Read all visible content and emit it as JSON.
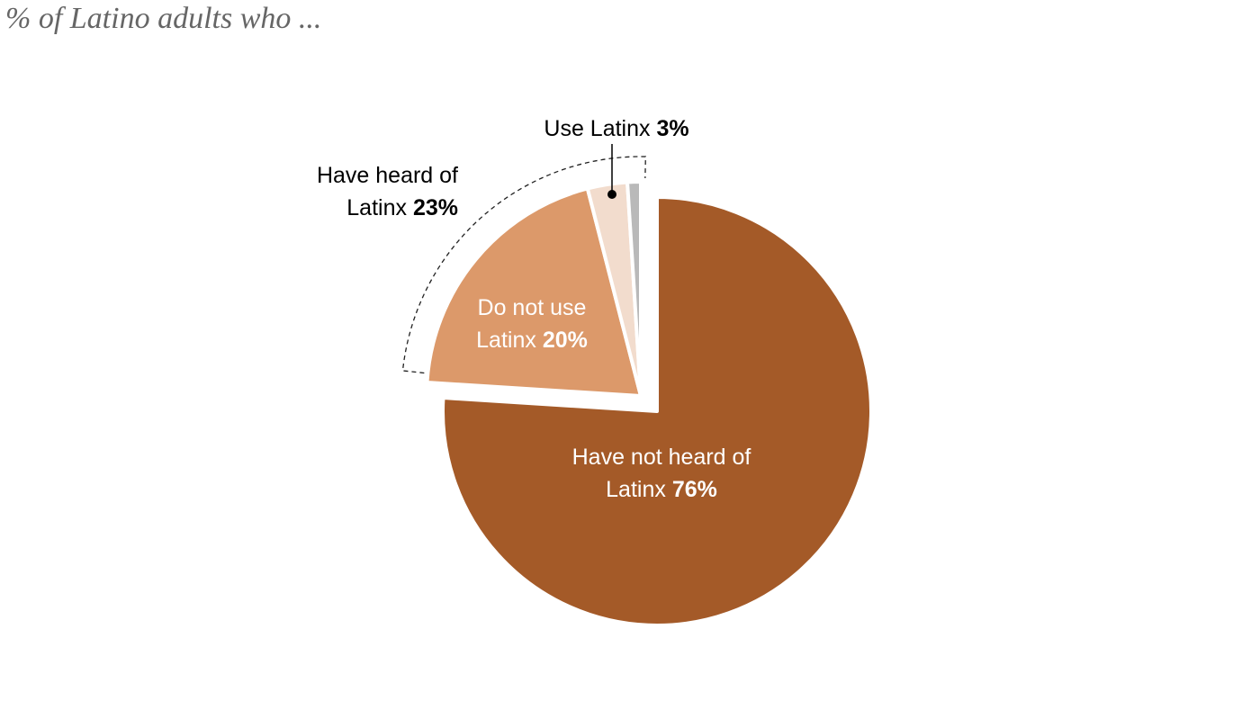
{
  "chart_data": {
    "type": "pie",
    "title": "% of Latino adults who ...",
    "categories": [
      "Have not heard of Latinx",
      "Do not use Latinx",
      "Use Latinx",
      null
    ],
    "values": [
      76,
      20,
      3,
      1
    ],
    "value_labels": [
      "76%",
      "20%",
      "3%",
      null
    ],
    "colors": [
      "#a45a28",
      "#dc996a",
      "#f2dccd",
      "#b9b9b9"
    ],
    "annotations": [
      {
        "text": "Have heard of Latinx",
        "value": 23,
        "value_label": "23%"
      }
    ]
  }
}
